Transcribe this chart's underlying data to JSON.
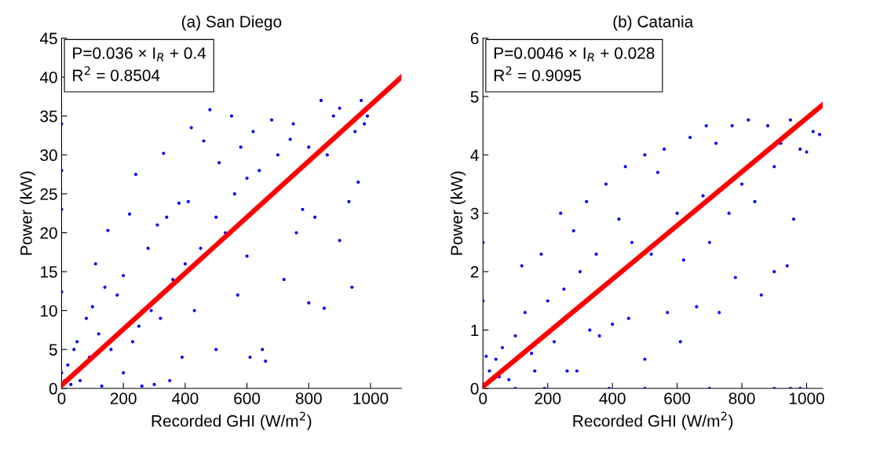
{
  "chart_data": [
    {
      "type": "scatter",
      "title": "(a) San Diego",
      "xlabel": "Recorded GHI (W/m$^{2}$)",
      "ylabel": "Power (kW)",
      "xlim": [
        0,
        1100
      ],
      "ylim": [
        0,
        45
      ],
      "xticks": [
        0,
        200,
        400,
        600,
        800,
        1000
      ],
      "yticks": [
        0,
        5,
        10,
        15,
        20,
        25,
        30,
        35,
        40,
        45
      ],
      "grid": false,
      "annotations": [
        "P=0.036 × I$_{R}$ + 0.4",
        "R$^{2}$ = 0.8504"
      ],
      "series": [
        {
          "marker": "circle",
          "color": "#0000ff",
          "x": [
            0,
            0,
            0,
            0,
            0,
            10,
            20,
            30,
            40,
            50,
            60,
            80,
            90,
            100,
            110,
            120,
            130,
            140,
            150,
            160,
            180,
            200,
            200,
            220,
            230,
            240,
            250,
            260,
            280,
            290,
            300,
            310,
            320,
            330,
            340,
            350,
            360,
            380,
            390,
            400,
            410,
            420,
            430,
            450,
            460,
            480,
            500,
            500,
            510,
            530,
            550,
            560,
            570,
            580,
            600,
            600,
            610,
            620,
            640,
            650,
            660,
            680,
            700,
            720,
            740,
            750,
            760,
            780,
            800,
            800,
            820,
            840,
            850,
            860,
            880,
            900,
            900,
            930,
            940,
            950,
            960,
            970,
            980,
            990
          ],
          "values": [
            34,
            28,
            23,
            12.4,
            2,
            1,
            3,
            0.5,
            5,
            6,
            1,
            9,
            4,
            10.5,
            16,
            7,
            0.3,
            13,
            20.3,
            5,
            12,
            14.5,
            2,
            22.4,
            6,
            27.5,
            8,
            0.3,
            18,
            10,
            0.5,
            21,
            9,
            30.2,
            22,
            1,
            14,
            23.8,
            4,
            16,
            24,
            33.5,
            10,
            18,
            31.8,
            35.8,
            5,
            22,
            29,
            20,
            35,
            25,
            12,
            31,
            27,
            17,
            4,
            33,
            28,
            5,
            3.5,
            34.5,
            30,
            14,
            32,
            34,
            20,
            23,
            31,
            11,
            22,
            37,
            10.3,
            30,
            35,
            36,
            19,
            24,
            13,
            33,
            26.5,
            37,
            34,
            35
          ]
        },
        {
          "type": "line",
          "color": "#ff0000",
          "x": [
            0,
            1100
          ],
          "values": [
            0.4,
            40.0
          ]
        }
      ]
    },
    {
      "type": "scatter",
      "title": "(b) Catania",
      "xlabel": "Recorded GHI (W/m$^{2}$)",
      "ylabel": "Power (kW)",
      "xlim": [
        0,
        1050
      ],
      "ylim": [
        0,
        6
      ],
      "xticks": [
        0,
        200,
        400,
        600,
        800,
        1000
      ],
      "yticks": [
        0,
        1,
        2,
        3,
        4,
        5,
        6
      ],
      "grid": false,
      "annotations": [
        "P=0.0046 × I$_{R}$ + 0.028",
        "R$^{2}$ = 0.9095"
      ],
      "series": [
        {
          "marker": "circle",
          "color": "#0000ff",
          "x": [
            0,
            0,
            10,
            20,
            40,
            50,
            60,
            80,
            100,
            100,
            120,
            130,
            150,
            160,
            180,
            190,
            200,
            220,
            240,
            250,
            260,
            280,
            290,
            300,
            320,
            330,
            350,
            360,
            380,
            390,
            400,
            420,
            440,
            450,
            460,
            500,
            500,
            520,
            540,
            560,
            570,
            600,
            610,
            620,
            640,
            660,
            680,
            690,
            700,
            720,
            730,
            760,
            770,
            780,
            800,
            820,
            840,
            860,
            880,
            900,
            900,
            920,
            940,
            950,
            960,
            980,
            1000,
            1020,
            1040,
            900,
            950,
            980,
            700,
            500
          ],
          "values": [
            2.5,
            1.5,
            0.55,
            0.3,
            0.5,
            0.2,
            0.7,
            0.15,
            0.9,
            0,
            2.1,
            1.3,
            0.6,
            0.3,
            2.3,
            0,
            1.5,
            0.8,
            3,
            1.7,
            0.3,
            2.7,
            0.3,
            2.0,
            3.2,
            1.0,
            2.3,
            0.9,
            3.5,
            0,
            1.1,
            2.9,
            3.8,
            1.2,
            2.5,
            4.0,
            0.5,
            2.3,
            3.7,
            4.1,
            1.3,
            3.0,
            0.8,
            2.2,
            4.3,
            1.4,
            3.3,
            4.5,
            2.5,
            4.2,
            1.3,
            3.0,
            4.5,
            1.9,
            3.5,
            4.6,
            3.2,
            1.6,
            4.5,
            3.8,
            2.0,
            4.2,
            2.1,
            4.6,
            2.9,
            4.1,
            4.05,
            4.4,
            4.35,
            0,
            0,
            0,
            0,
            0
          ]
        },
        {
          "type": "line",
          "color": "#ff0000",
          "x": [
            0,
            1050
          ],
          "values": [
            0.03,
            4.86
          ]
        }
      ]
    }
  ]
}
